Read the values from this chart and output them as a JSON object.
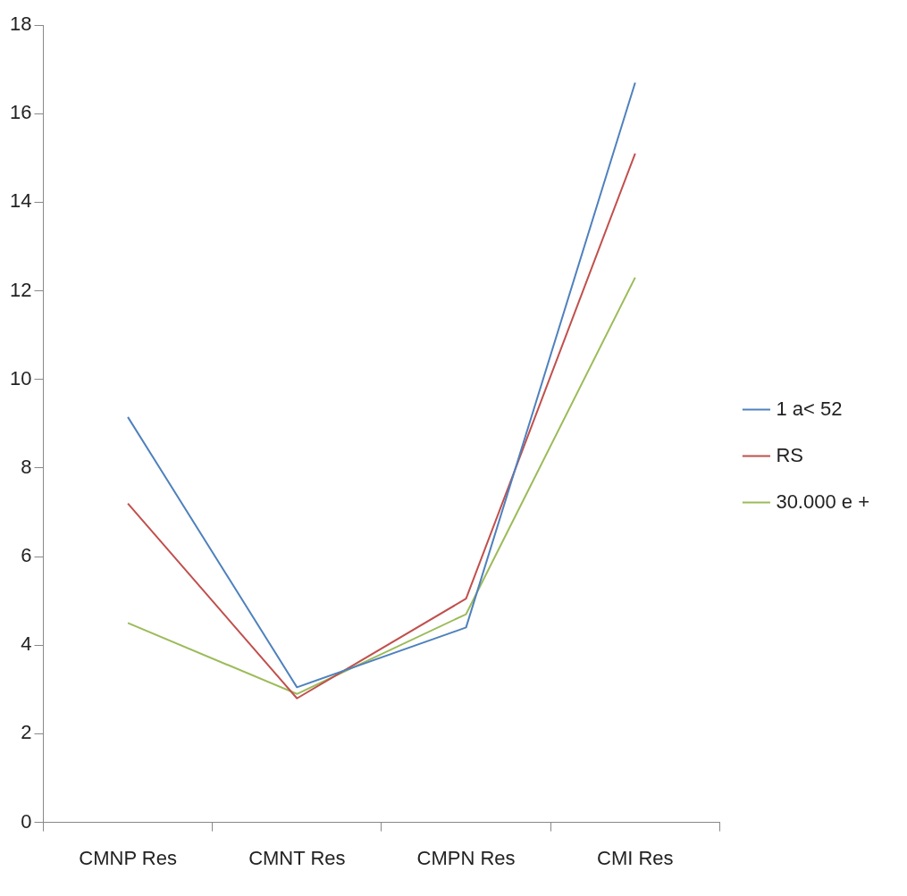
{
  "chart_data": {
    "type": "line",
    "categories": [
      "CMNP Res",
      "CMNT Res",
      "CMPN Res",
      "CMI Res"
    ],
    "series": [
      {
        "name": "1 a< 52",
        "color": "#4f81bd",
        "values": [
          9.15,
          3.05,
          4.4,
          16.7
        ]
      },
      {
        "name": "RS",
        "color": "#c0504d",
        "values": [
          7.2,
          2.8,
          5.05,
          15.1
        ]
      },
      {
        "name": "30.000 e +",
        "color": "#9bbb59",
        "values": [
          4.5,
          2.9,
          4.7,
          12.3
        ]
      }
    ],
    "ylim": [
      0,
      18
    ],
    "yticks": [
      0,
      2,
      4,
      6,
      8,
      10,
      12,
      14,
      16,
      18
    ],
    "grid": false,
    "legend": "right",
    "marker": "none",
    "line_style": "solid"
  }
}
